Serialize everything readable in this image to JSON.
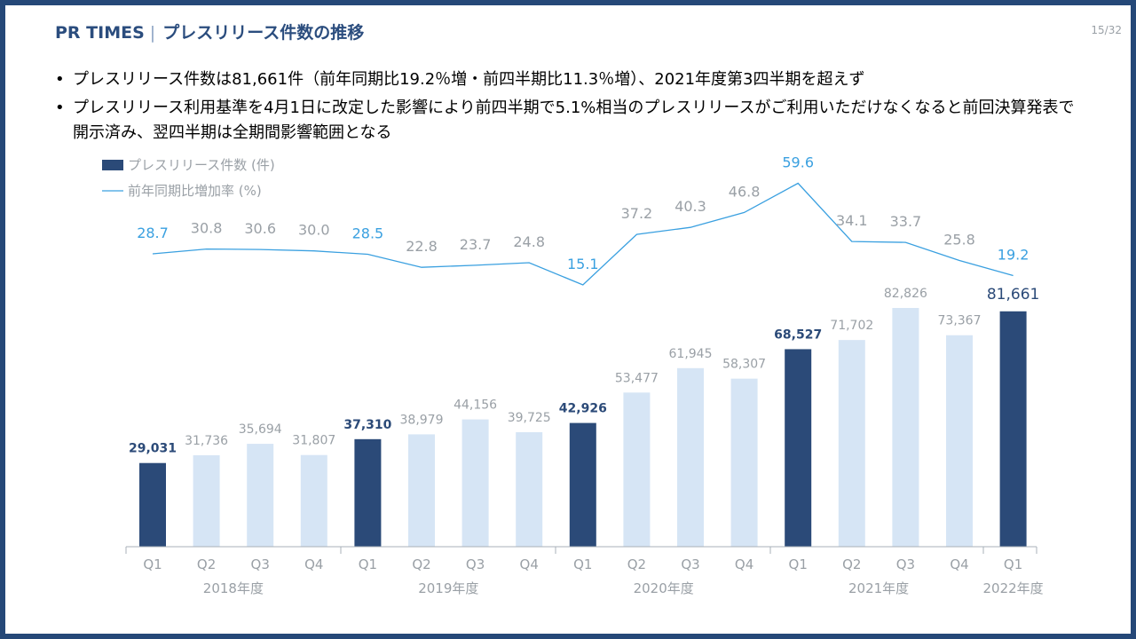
{
  "header": {
    "brand": "PR TIMES",
    "title": "プレスリリース件数の推移",
    "page": "15/32"
  },
  "bullets": [
    "プレスリリース件数は81,661件（前年同期比19.2％増・前四半期比11.3％増）、2021年度第3四半期を超えず",
    "プレスリリース利用基準を4月1日に改定した影響により前四半期で5.1%相当のプレスリリースがご利用いただけなくなると前回決算発表で開示済み、翌四半期は全期間影響範囲となる"
  ],
  "colors": {
    "frame": "#254878",
    "bar_highlight": "#2b4a78",
    "bar_normal": "#d6e5f5",
    "line": "#3aa0e0",
    "label_gray": "#9aa0a6",
    "label_blue": "#3aa0e0",
    "label_dark": "#2b4a78"
  },
  "chart_data": {
    "type": "bar+line",
    "legend": [
      {
        "label": "プレスリリース件数 (件)",
        "kind": "bar"
      },
      {
        "label": "前年同期比増加率 (%)",
        "kind": "line"
      }
    ],
    "categories": [
      "Q1",
      "Q2",
      "Q3",
      "Q4",
      "Q1",
      "Q2",
      "Q3",
      "Q4",
      "Q1",
      "Q2",
      "Q3",
      "Q4",
      "Q1",
      "Q2",
      "Q3",
      "Q4",
      "Q1"
    ],
    "groups": [
      {
        "label": "2018年度",
        "start": 0,
        "end": 3
      },
      {
        "label": "2019年度",
        "start": 4,
        "end": 7
      },
      {
        "label": "2020年度",
        "start": 8,
        "end": 11
      },
      {
        "label": "2021年度",
        "start": 12,
        "end": 15
      },
      {
        "label": "2022年度",
        "start": 16,
        "end": 16
      }
    ],
    "bars": {
      "name": "プレスリリース件数 (件)",
      "values": [
        29031,
        31736,
        35694,
        31807,
        37310,
        38979,
        44156,
        39725,
        42926,
        53477,
        61945,
        58307,
        68527,
        71702,
        82826,
        73367,
        81661
      ],
      "labels": [
        "29,031",
        "31,736",
        "35,694",
        "31,807",
        "37,310",
        "38,979",
        "44,156",
        "39,725",
        "42,926",
        "53,477",
        "61,945",
        "58,307",
        "68,527",
        "71,702",
        "82,826",
        "73,367",
        "81,661"
      ],
      "highlight": [
        true,
        false,
        false,
        false,
        true,
        false,
        false,
        false,
        true,
        false,
        false,
        false,
        true,
        false,
        false,
        false,
        true
      ]
    },
    "line": {
      "name": "前年同期比増加率 (%)",
      "values": [
        28.7,
        30.8,
        30.6,
        30.0,
        28.5,
        22.8,
        23.7,
        24.8,
        15.1,
        37.2,
        40.3,
        46.8,
        59.6,
        34.1,
        33.7,
        25.8,
        19.2
      ],
      "labels": [
        "28.7",
        "30.8",
        "30.6",
        "30.0",
        "28.5",
        "22.8",
        "23.7",
        "24.8",
        "15.1",
        "37.2",
        "40.3",
        "46.8",
        "59.6",
        "34.1",
        "33.7",
        "25.8",
        "19.2"
      ]
    }
  }
}
